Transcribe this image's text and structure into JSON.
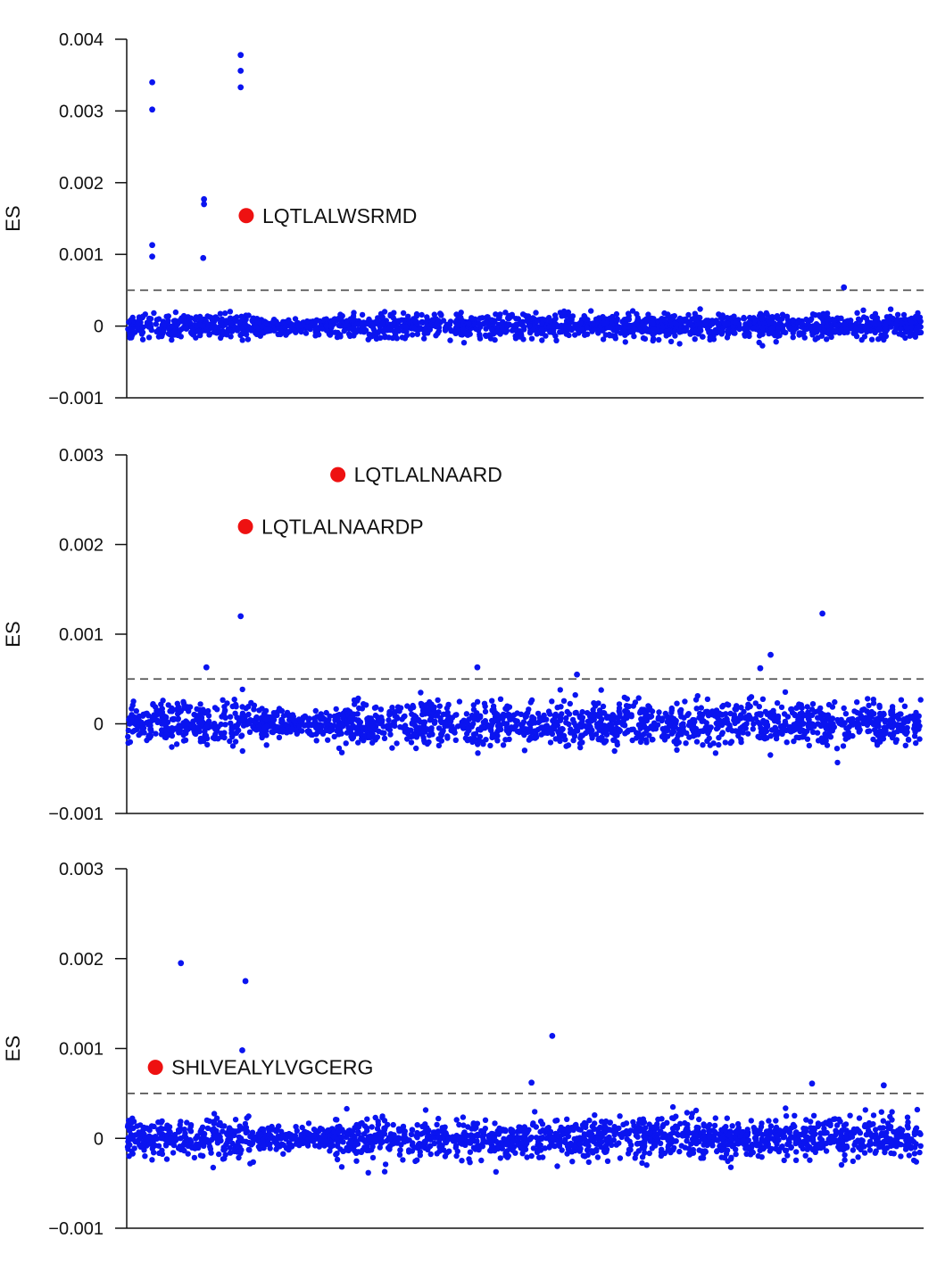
{
  "chart_data": [
    {
      "type": "scatter",
      "ylabel": "ES",
      "ylim": [
        -0.001,
        0.004
      ],
      "yticks": [
        -0.001,
        0,
        0.001,
        0.002,
        0.003,
        0.004
      ],
      "ytick_labels": [
        "−0.001",
        "0",
        "0.001",
        "0.002",
        "0.003",
        "0.004"
      ],
      "threshold": 0.0005,
      "grid": false,
      "point_color": "#0a14f0",
      "highlight_color": "#ee1111",
      "n_points": 1800,
      "noise_sd": 8.5e-05,
      "highlights": [
        {
          "label": "LQTLALWSRMD",
          "x": 150,
          "y": 0.00154
        }
      ],
      "outliers": [
        {
          "x": 32,
          "y": 0.0034
        },
        {
          "x": 32,
          "y": 0.00302
        },
        {
          "x": 32,
          "y": 0.00113
        },
        {
          "x": 32,
          "y": 0.00097
        },
        {
          "x": 97,
          "y": 0.00177
        },
        {
          "x": 97,
          "y": 0.0017
        },
        {
          "x": 96,
          "y": 0.00095
        },
        {
          "x": 143,
          "y": 0.00378
        },
        {
          "x": 143,
          "y": 0.00356
        },
        {
          "x": 143,
          "y": 0.00333
        },
        {
          "x": 900,
          "y": 0.00054
        }
      ]
    },
    {
      "type": "scatter",
      "ylabel": "ES",
      "ylim": [
        -0.001,
        0.003
      ],
      "yticks": [
        -0.001,
        0,
        0.001,
        0.002,
        0.003
      ],
      "ytick_labels": [
        "−0.001",
        "0",
        "0.001",
        "0.002",
        "0.003"
      ],
      "threshold": 0.0005,
      "grid": false,
      "point_color": "#0a14f0",
      "highlight_color": "#ee1111",
      "n_points": 1800,
      "noise_sd": 0.00012,
      "highlights": [
        {
          "label": "LQTLALNAARD",
          "x": 265,
          "y": 0.00278
        },
        {
          "label": "LQTLALNAARDP",
          "x": 149,
          "y": 0.0022
        }
      ],
      "outliers": [
        {
          "x": 143,
          "y": 0.0012
        },
        {
          "x": 873,
          "y": 0.00123
        },
        {
          "x": 808,
          "y": 0.00077
        },
        {
          "x": 100,
          "y": 0.00063
        },
        {
          "x": 440,
          "y": 0.00063
        },
        {
          "x": 795,
          "y": 0.00062
        },
        {
          "x": 565,
          "y": 0.00055
        }
      ]
    },
    {
      "type": "scatter",
      "ylabel": "ES",
      "ylim": [
        -0.001,
        0.003
      ],
      "yticks": [
        -0.001,
        0,
        0.001,
        0.002,
        0.003
      ],
      "ytick_labels": [
        "−0.001",
        "0",
        "0.001",
        "0.002",
        "0.003"
      ],
      "threshold": 0.0005,
      "grid": false,
      "point_color": "#0a14f0",
      "highlight_color": "#ee1111",
      "n_points": 1800,
      "noise_sd": 0.00011,
      "highlights": [
        {
          "label": "SHLVEALYLVGCERG",
          "x": 36,
          "y": 0.00079
        }
      ],
      "outliers": [
        {
          "x": 68,
          "y": 0.00195
        },
        {
          "x": 149,
          "y": 0.00175
        },
        {
          "x": 534,
          "y": 0.00114
        },
        {
          "x": 145,
          "y": 0.00098
        },
        {
          "x": 508,
          "y": 0.00062
        },
        {
          "x": 860,
          "y": 0.00061
        },
        {
          "x": 950,
          "y": 0.00059
        }
      ]
    }
  ]
}
